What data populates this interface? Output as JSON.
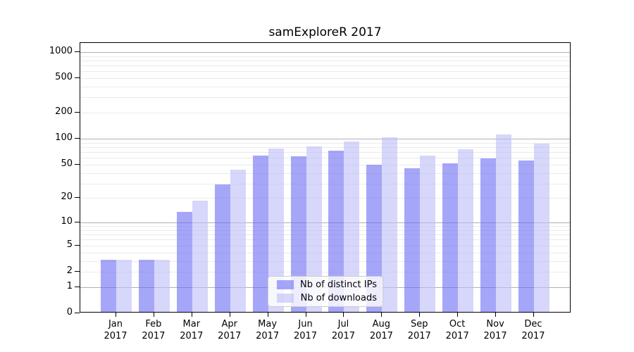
{
  "title": "samExploreR 2017",
  "chart_data": {
    "type": "bar",
    "title": "samExploreR 2017",
    "xlabel": "",
    "ylabel": "",
    "yscale": "log1p",
    "ymax": 1273,
    "grid": true,
    "legend_position": "lower-center",
    "categories": [
      "Jan 2017",
      "Feb 2017",
      "Mar 2017",
      "Apr 2017",
      "May 2017",
      "Jun 2017",
      "Jul 2017",
      "Aug 2017",
      "Sep 2017",
      "Oct 2017",
      "Nov 2017",
      "Dec 2017"
    ],
    "series": [
      {
        "name": "Nb of distinct IPs",
        "color": "rgba(102,102,245,0.58)",
        "values": [
          3,
          3,
          13,
          28,
          61,
          60,
          70,
          48,
          44,
          50,
          57,
          54
        ]
      },
      {
        "name": "Nb of downloads",
        "color": "rgba(190,190,248,0.62)",
        "values": [
          3,
          3,
          18,
          42,
          74,
          79,
          89,
          100,
          62,
          73,
          108,
          85
        ]
      }
    ],
    "y_tick_labels": [
      "0",
      "1",
      "2",
      "5",
      "10",
      "20",
      "50",
      "100",
      "200",
      "500",
      "1000"
    ],
    "y_tick_values": [
      0,
      1,
      2,
      5,
      10,
      20,
      50,
      100,
      200,
      500,
      1000
    ],
    "y_major_grid": [
      1,
      10,
      100,
      1000
    ],
    "y_minor_grid": [
      2,
      3,
      4,
      5,
      6,
      7,
      8,
      9,
      20,
      30,
      40,
      50,
      60,
      70,
      80,
      90,
      200,
      300,
      400,
      500,
      600,
      700,
      800,
      900
    ],
    "colors": {
      "spine": "#000000",
      "major_grid": "#b0b0b0",
      "minor_grid": "#ebebeb"
    }
  }
}
